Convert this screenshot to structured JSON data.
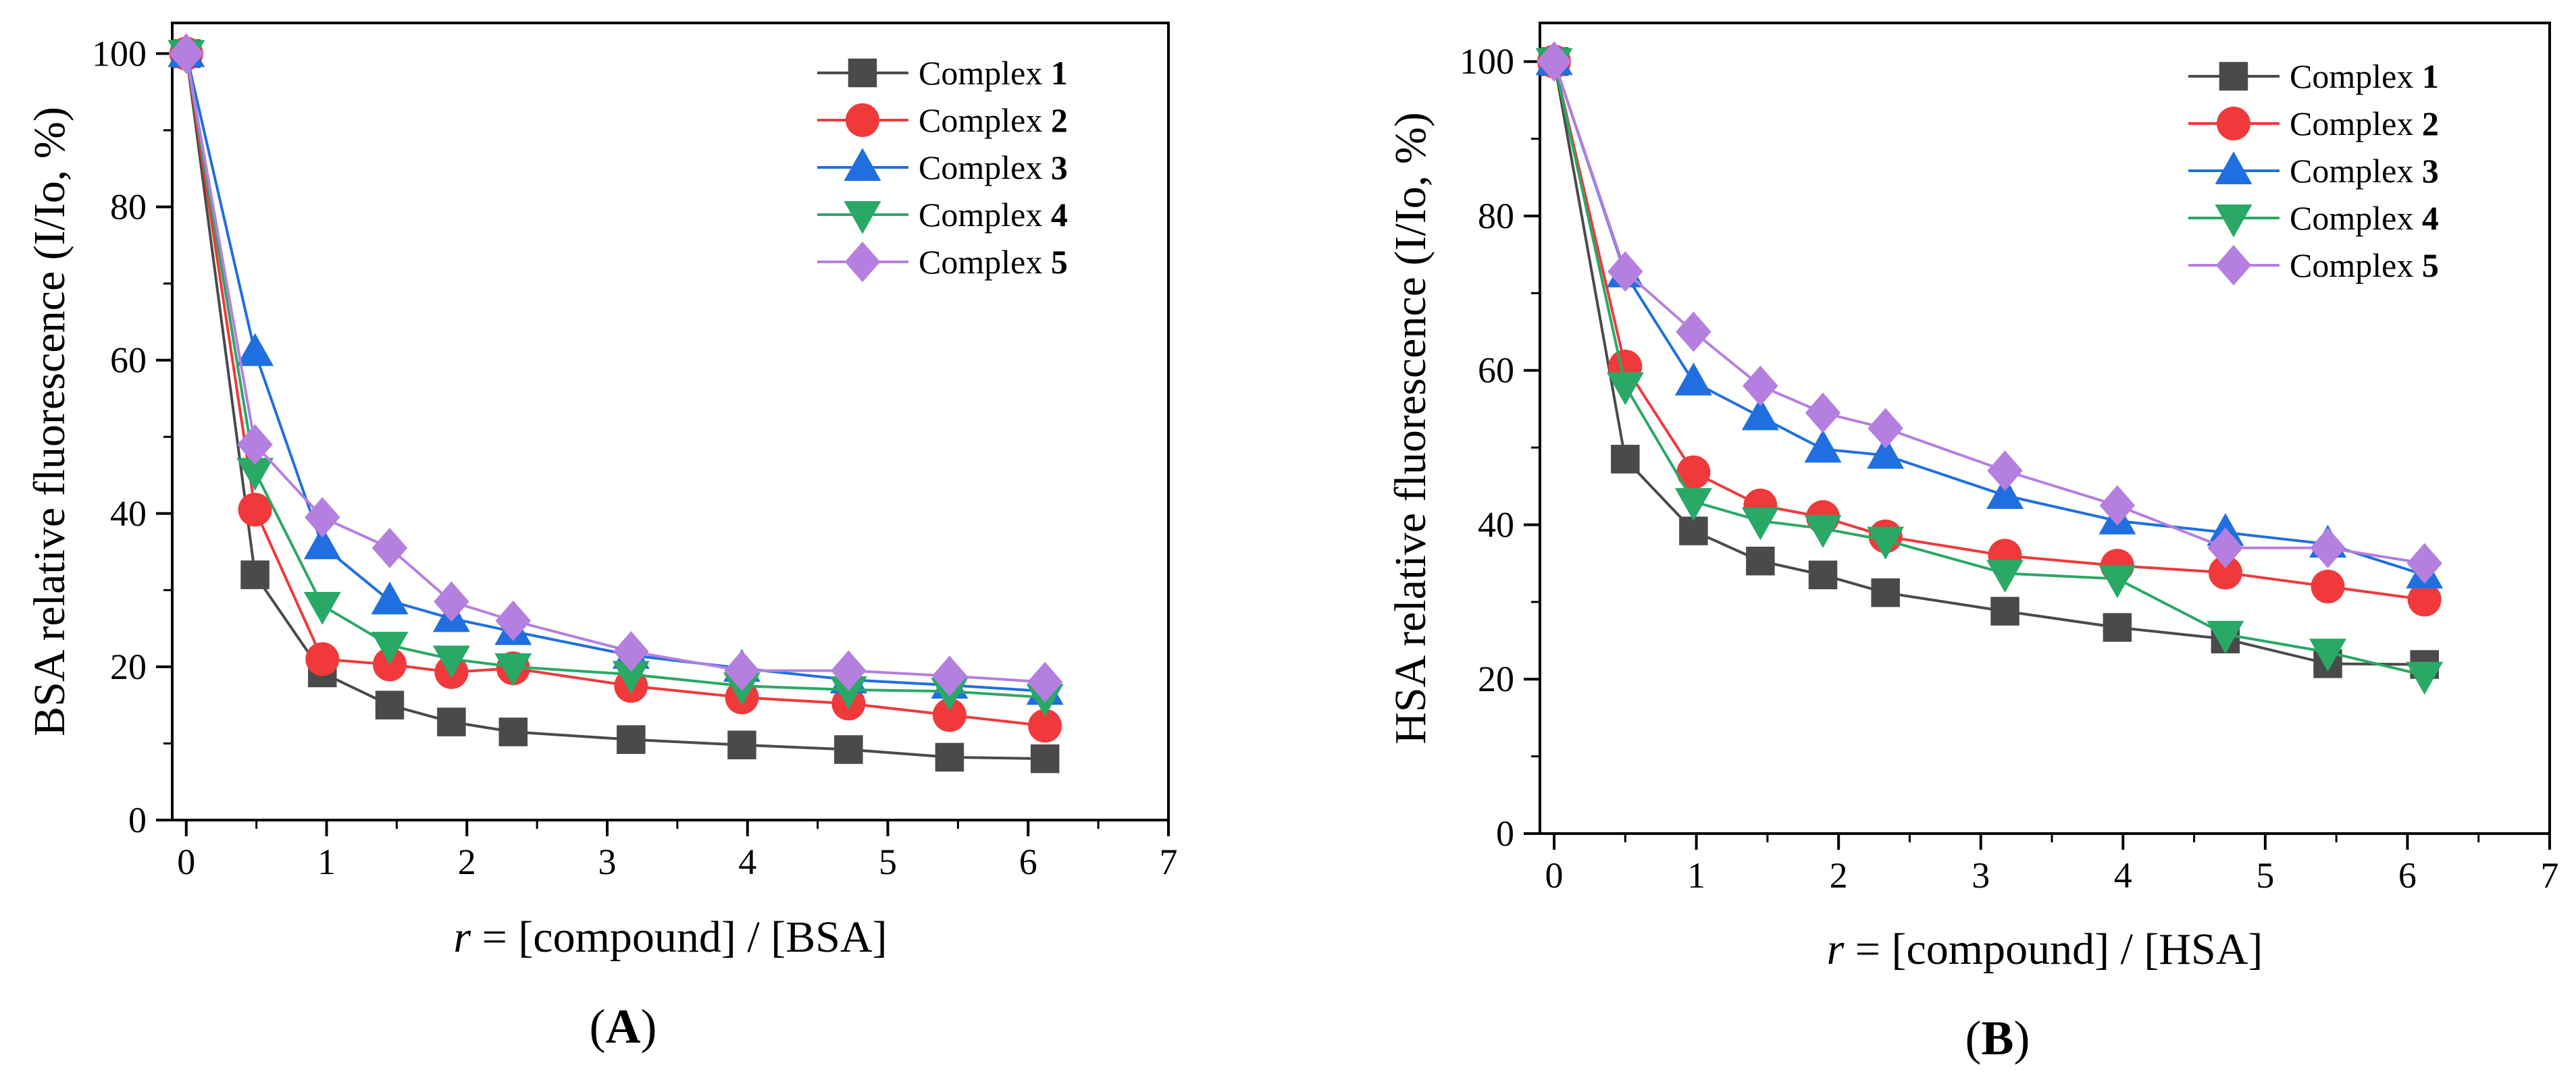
{
  "chart_data": [
    {
      "panel_label": "A",
      "type": "line",
      "xlabel_var": "r",
      "xlabel_rest": " = [compound] / [BSA]",
      "ylabel": "BSA relative fluorescence (I/Io, %)",
      "xlim": [
        -0.1,
        7
      ],
      "ylim": [
        0,
        104
      ],
      "xticks": [
        0,
        1,
        2,
        3,
        4,
        5,
        6,
        7
      ],
      "yticks": [
        0,
        20,
        40,
        60,
        80,
        100
      ],
      "legend_position": "top-right",
      "x": [
        0,
        0.49,
        0.97,
        1.45,
        1.89,
        2.33,
        3.17,
        3.96,
        4.72,
        5.44,
        6.12
      ],
      "series": [
        {
          "name_prefix": "Complex ",
          "name_number": "1",
          "color": "#4a4a4a",
          "marker": "square",
          "values": [
            100,
            32.0,
            19.2,
            15.0,
            12.8,
            11.5,
            10.5,
            9.8,
            9.2,
            8.2,
            8.0
          ]
        },
        {
          "name_prefix": "Complex ",
          "name_number": "2",
          "color": "#f0393b",
          "marker": "circle",
          "values": [
            100,
            40.5,
            21.0,
            20.3,
            19.3,
            19.8,
            17.5,
            16.0,
            15.2,
            13.7,
            12.3
          ]
        },
        {
          "name_prefix": "Complex ",
          "name_number": "3",
          "color": "#1f6fe0",
          "marker": "triangle-up",
          "values": [
            100,
            61.0,
            35.8,
            28.6,
            26.3,
            24.6,
            21.5,
            19.8,
            18.3,
            17.6,
            16.8
          ]
        },
        {
          "name_prefix": "Complex ",
          "name_number": "4",
          "color": "#2aa866",
          "marker": "triangle-down",
          "values": [
            100,
            45.5,
            28.0,
            22.8,
            21.0,
            20.0,
            19.0,
            17.5,
            17.0,
            16.8,
            16.0
          ]
        },
        {
          "name_prefix": "Complex ",
          "name_number": "5",
          "color": "#b57fe0",
          "marker": "diamond",
          "values": [
            100,
            49.0,
            39.5,
            35.5,
            28.5,
            26.0,
            22.0,
            19.5,
            19.5,
            18.8,
            18.0
          ]
        }
      ]
    },
    {
      "panel_label": "B",
      "type": "line",
      "xlabel_var": "r",
      "xlabel_rest": " = [compound] / [HSA]",
      "ylabel": "HSA relative fluorescence (I/Io, %)",
      "xlim": [
        -0.1,
        7
      ],
      "ylim": [
        0,
        105
      ],
      "xticks": [
        0,
        1,
        2,
        3,
        4,
        5,
        6,
        7
      ],
      "yticks": [
        0,
        20,
        40,
        60,
        80,
        100
      ],
      "legend_position": "top-right",
      "x": [
        0,
        0.5,
        0.98,
        1.45,
        1.89,
        2.33,
        3.17,
        3.96,
        4.72,
        5.44,
        6.12
      ],
      "series": [
        {
          "name_prefix": "Complex ",
          "name_number": "1",
          "color": "#4a4a4a",
          "marker": "square",
          "values": [
            100,
            48.5,
            39.2,
            35.3,
            33.5,
            31.2,
            28.8,
            26.7,
            25.2,
            22.0,
            21.9
          ]
        },
        {
          "name_prefix": "Complex ",
          "name_number": "2",
          "color": "#f0393b",
          "marker": "circle",
          "values": [
            100,
            60.5,
            46.8,
            42.5,
            41.0,
            38.5,
            36.0,
            34.7,
            33.8,
            32.0,
            30.3
          ]
        },
        {
          "name_prefix": "Complex ",
          "name_number": "3",
          "color": "#1f6fe0",
          "marker": "triangle-up",
          "values": [
            100,
            72.5,
            58.5,
            54.0,
            49.8,
            49.0,
            43.8,
            40.5,
            39.0,
            37.5,
            33.5
          ]
        },
        {
          "name_prefix": "Complex ",
          "name_number": "4",
          "color": "#2aa866",
          "marker": "triangle-down",
          "values": [
            100,
            58.0,
            43.0,
            40.5,
            39.5,
            38.0,
            33.7,
            33.0,
            25.8,
            23.5,
            20.5
          ]
        },
        {
          "name_prefix": "Complex ",
          "name_number": "5",
          "color": "#b57fe0",
          "marker": "diamond",
          "values": [
            100,
            72.8,
            65.0,
            58.0,
            54.5,
            52.5,
            47.0,
            42.5,
            37.0,
            37.0,
            35.0
          ]
        }
      ]
    }
  ]
}
